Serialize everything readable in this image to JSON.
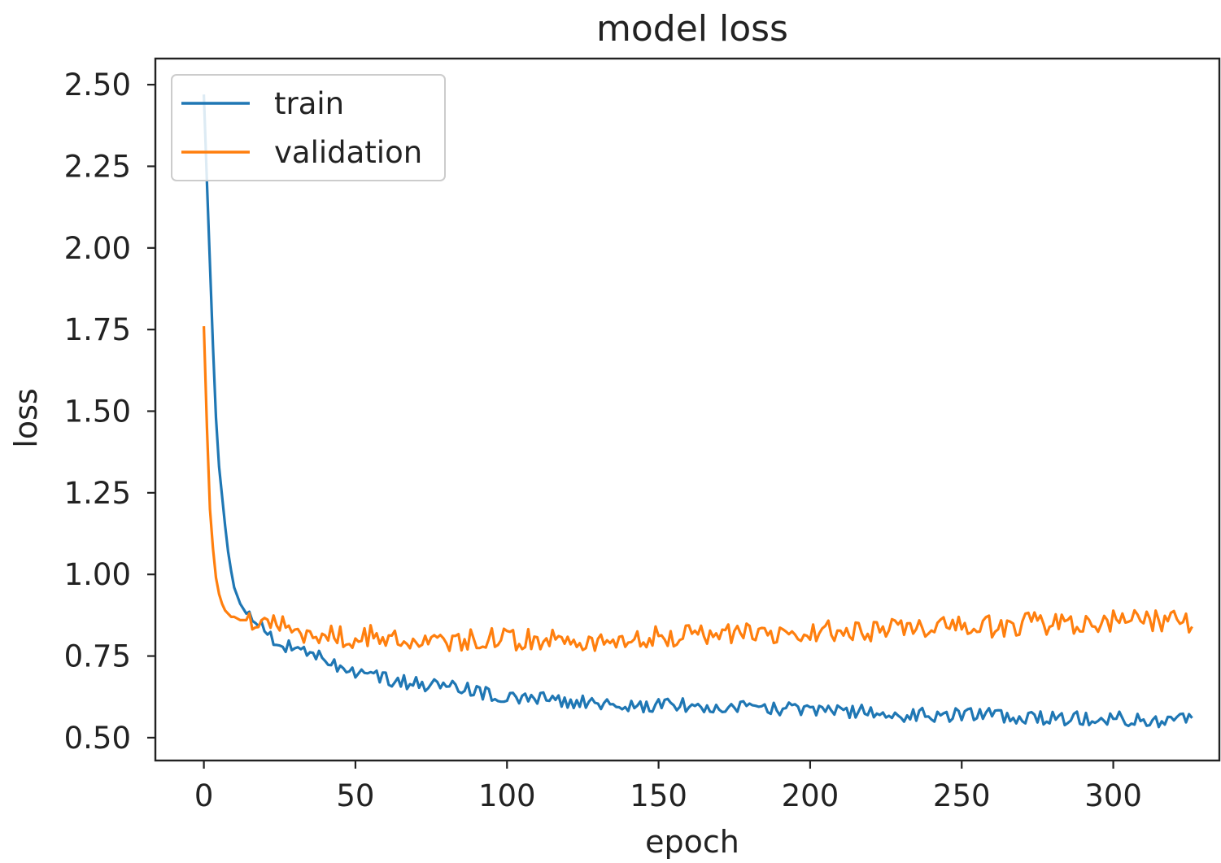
{
  "chart_data": {
    "type": "line",
    "title": "model loss",
    "xlabel": "epoch",
    "ylabel": "loss",
    "xlim": [
      -16,
      335
    ],
    "ylim": [
      0.43,
      2.58
    ],
    "xticks": [
      0,
      50,
      100,
      150,
      200,
      250,
      300
    ],
    "xtick_labels": [
      "0",
      "50",
      "100",
      "150",
      "200",
      "250",
      "300"
    ],
    "yticks": [
      0.5,
      0.75,
      1.0,
      1.25,
      1.5,
      1.75,
      2.0,
      2.25,
      2.5
    ],
    "ytick_labels": [
      "0.50",
      "0.75",
      "1.00",
      "1.25",
      "1.50",
      "1.75",
      "2.00",
      "2.25",
      "2.50"
    ],
    "grid": false,
    "legend_position": "upper-left",
    "series": [
      {
        "name": "train",
        "color": "#1f77b4",
        "x": [
          0,
          1,
          2,
          3,
          4,
          5,
          6,
          7,
          8,
          9,
          10,
          12,
          14,
          16,
          18,
          20,
          25,
          30,
          35,
          40,
          45,
          50,
          55,
          60,
          65,
          70,
          75,
          80,
          85,
          90,
          95,
          100,
          110,
          120,
          130,
          140,
          150,
          160,
          170,
          180,
          190,
          200,
          210,
          220,
          230,
          240,
          250,
          260,
          270,
          280,
          290,
          300,
          310,
          320,
          326
        ],
        "y": [
          2.47,
          2.2,
          1.95,
          1.7,
          1.48,
          1.33,
          1.24,
          1.15,
          1.07,
          1.01,
          0.96,
          0.91,
          0.88,
          0.86,
          0.85,
          0.83,
          0.79,
          0.77,
          0.76,
          0.74,
          0.72,
          0.7,
          0.69,
          0.68,
          0.67,
          0.67,
          0.66,
          0.66,
          0.65,
          0.64,
          0.63,
          0.62,
          0.62,
          0.61,
          0.61,
          0.6,
          0.6,
          0.6,
          0.59,
          0.59,
          0.59,
          0.58,
          0.58,
          0.58,
          0.57,
          0.57,
          0.57,
          0.57,
          0.56,
          0.56,
          0.56,
          0.56,
          0.55,
          0.55,
          0.56
        ]
      },
      {
        "name": "validation",
        "color": "#ff7f0e",
        "x": [
          0,
          1,
          2,
          3,
          4,
          5,
          6,
          7,
          8,
          9,
          10,
          12,
          14,
          16,
          18,
          20,
          25,
          30,
          35,
          40,
          45,
          50,
          55,
          60,
          65,
          70,
          75,
          80,
          85,
          90,
          95,
          100,
          110,
          120,
          130,
          140,
          150,
          160,
          170,
          180,
          190,
          200,
          210,
          220,
          230,
          240,
          250,
          260,
          270,
          280,
          290,
          300,
          310,
          320,
          326
        ],
        "y": [
          1.76,
          1.45,
          1.2,
          1.08,
          0.99,
          0.94,
          0.91,
          0.89,
          0.88,
          0.87,
          0.87,
          0.86,
          0.86,
          0.85,
          0.85,
          0.85,
          0.84,
          0.83,
          0.82,
          0.82,
          0.81,
          0.81,
          0.81,
          0.8,
          0.8,
          0.8,
          0.8,
          0.8,
          0.8,
          0.8,
          0.8,
          0.8,
          0.8,
          0.8,
          0.8,
          0.81,
          0.81,
          0.81,
          0.82,
          0.82,
          0.82,
          0.83,
          0.83,
          0.83,
          0.83,
          0.84,
          0.84,
          0.84,
          0.85,
          0.85,
          0.85,
          0.86,
          0.86,
          0.86,
          0.84
        ]
      }
    ]
  }
}
